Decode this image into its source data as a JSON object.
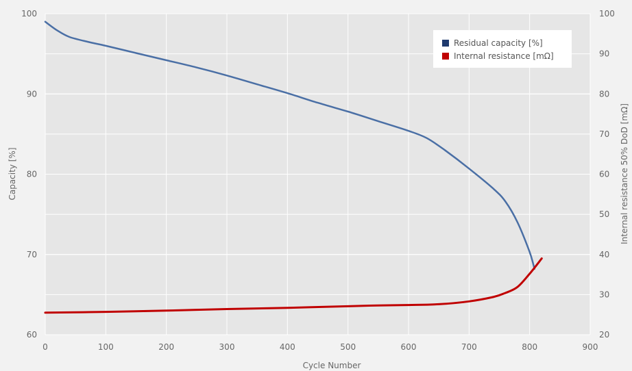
{
  "chart_data": {
    "type": "line",
    "title": "",
    "xlabel": "Cycle Number",
    "ylabel": "Capacity [%]",
    "y2label": "Internal resistance 50% DoD [mΩ]",
    "xlim": [
      0,
      900
    ],
    "ylim": [
      60,
      100
    ],
    "y2lim": [
      20,
      100
    ],
    "x_ticks": [
      0,
      100,
      200,
      300,
      400,
      500,
      600,
      700,
      800,
      900
    ],
    "y_ticks": [
      60,
      70,
      80,
      90,
      100
    ],
    "y2_ticks": [
      20,
      30,
      40,
      50,
      60,
      70,
      80,
      90,
      100
    ],
    "grid": true,
    "legend_position": "top-right",
    "series": [
      {
        "name": "Residual capacity [%]",
        "axis": "left",
        "color": "#4a6fa5",
        "legend_color": "#1f3a6e",
        "x": [
          0,
          20,
          40,
          70,
          100,
          150,
          200,
          250,
          300,
          350,
          400,
          450,
          500,
          550,
          600,
          630,
          660,
          700,
          740,
          760,
          780,
          800,
          808
        ],
        "y": [
          99.0,
          97.9,
          97.1,
          96.5,
          96.0,
          95.1,
          94.2,
          93.3,
          92.3,
          91.2,
          90.1,
          88.9,
          87.8,
          86.6,
          85.4,
          84.5,
          83.0,
          80.7,
          78.2,
          76.6,
          74.0,
          70.3,
          68.2
        ]
      },
      {
        "name": "Internal resistance [mΩ]",
        "axis": "right",
        "color": "#c00000",
        "legend_color": "#c00000",
        "x": [
          0,
          100,
          200,
          300,
          400,
          500,
          550,
          600,
          650,
          700,
          740,
          760,
          780,
          800,
          820
        ],
        "y": [
          25.5,
          25.7,
          26.0,
          26.4,
          26.7,
          27.1,
          27.3,
          27.4,
          27.6,
          28.3,
          29.4,
          30.4,
          31.9,
          35.2,
          39.0
        ]
      }
    ]
  }
}
